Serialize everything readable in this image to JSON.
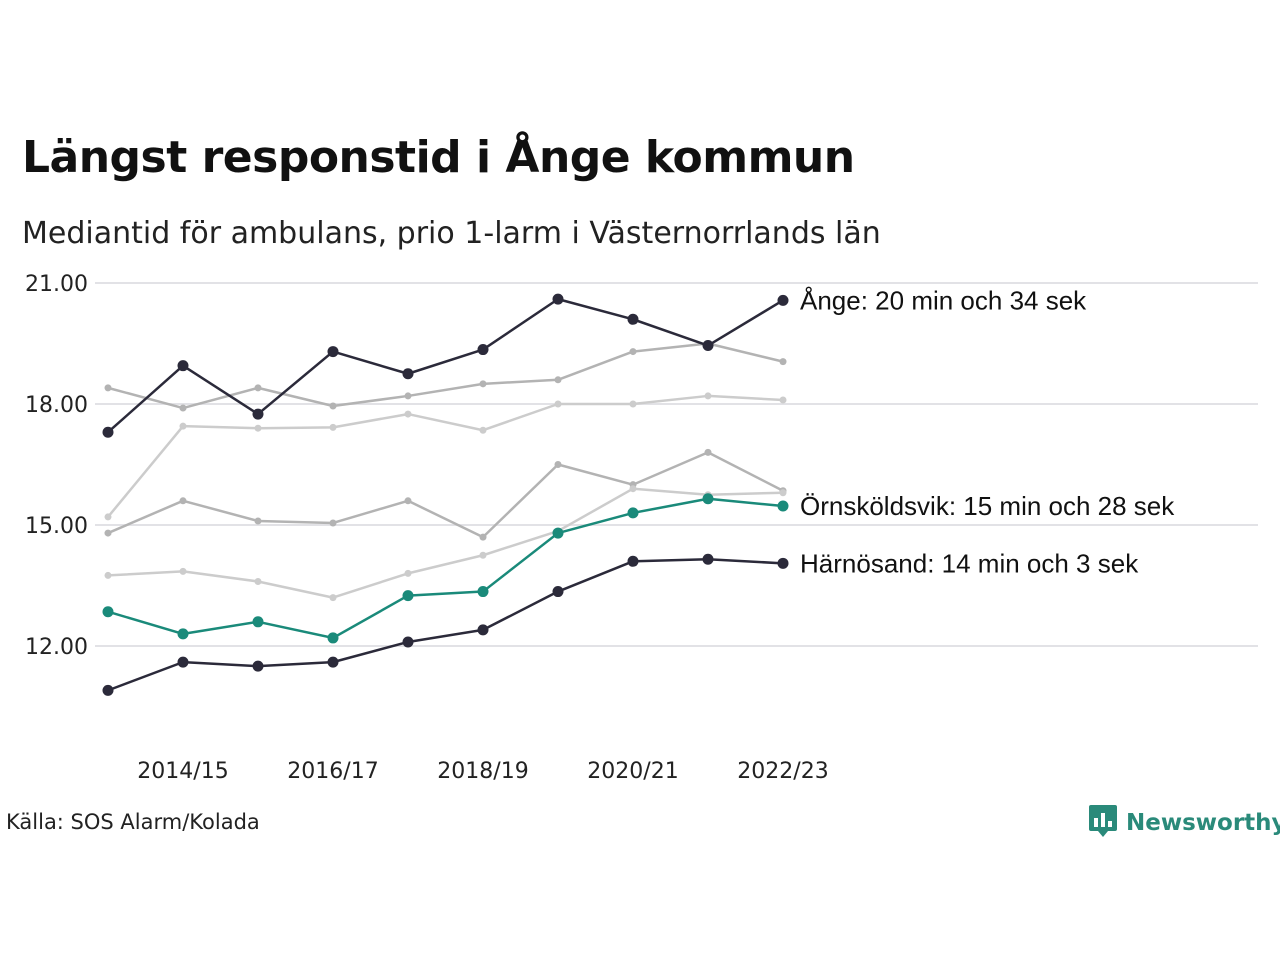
{
  "title": "Längst responstid i Ånge kommun",
  "subtitle": "Mediantid för ambulans, prio 1-larm i Västernorrlands län",
  "source": "Källa: SOS Alarm/Kolada",
  "brand": {
    "name": "Newsworthy",
    "icon": "newsworthy-logo-icon",
    "color": "#2a8a7a"
  },
  "chart_data": {
    "type": "line",
    "x": [
      "2013/14",
      "2014/15",
      "2015/16",
      "2016/17",
      "2017/18",
      "2018/19",
      "2019/20",
      "2020/21",
      "2021/22",
      "2022/23"
    ],
    "x_tick_labels": [
      "2014/15",
      "2016/17",
      "2018/19",
      "2020/21",
      "2022/23"
    ],
    "y_ticks": [
      12,
      15,
      18,
      21
    ],
    "y_tick_labels": [
      "12.00",
      "15.00",
      "18.00",
      "21.00"
    ],
    "ylim": [
      10.8,
      21.2
    ],
    "grid": true,
    "series": [
      {
        "values": [
          18.4,
          17.9,
          18.4,
          17.95,
          18.2,
          18.5,
          18.6,
          19.3,
          19.5,
          19.05
        ],
        "color": "#b3b3b3",
        "highlight": false
      },
      {
        "values": [
          15.2,
          17.45,
          17.4,
          17.42,
          17.75,
          17.35,
          18.0,
          18.0,
          18.2,
          18.1
        ],
        "color": "#cccccc",
        "highlight": false
      },
      {
        "values": [
          14.8,
          15.6,
          15.1,
          15.05,
          15.6,
          14.7,
          16.5,
          16.0,
          16.8,
          15.85
        ],
        "color": "#b3b3b3",
        "highlight": false
      },
      {
        "values": [
          13.75,
          13.85,
          13.6,
          13.2,
          13.8,
          14.25,
          14.85,
          15.9,
          15.75,
          15.8
        ],
        "color": "#cccccc",
        "highlight": false
      },
      {
        "values": [
          17.3,
          18.95,
          17.75,
          19.3,
          18.75,
          19.35,
          20.6,
          20.1,
          19.45,
          20.57
        ],
        "color": "#2b2a3a",
        "highlight": true,
        "label": "Ånge: 20 min och 34 sek"
      },
      {
        "values": [
          12.85,
          12.3,
          12.6,
          12.2,
          13.25,
          13.35,
          14.8,
          15.3,
          15.65,
          15.47
        ],
        "color": "#1a8a7a",
        "highlight": true,
        "label": "Örnsköldsvik: 15 min och 28 sek"
      },
      {
        "values": [
          10.9,
          11.6,
          11.5,
          11.6,
          12.1,
          12.4,
          13.35,
          14.1,
          14.15,
          14.05
        ],
        "color": "#2b2a3a",
        "highlight": true,
        "label": "Härnösand: 14 min och 3 sek"
      }
    ]
  }
}
